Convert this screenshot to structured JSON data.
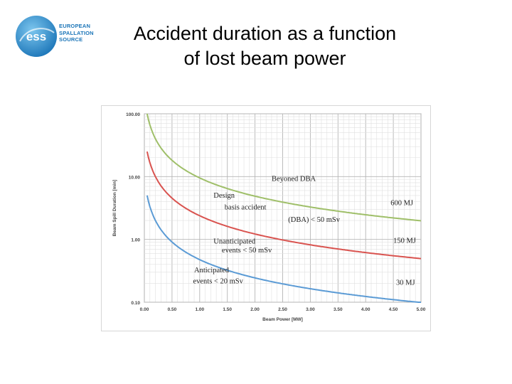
{
  "logo": {
    "mark": "ess",
    "lines": [
      "EUROPEAN",
      "SPALLATION",
      "SOURCE"
    ],
    "colors": {
      "primary": "#1b75b8",
      "light": "#5fb3e3"
    }
  },
  "slide": {
    "title": "Accident duration as a function\nof lost beam power"
  },
  "chart_data": {
    "type": "line",
    "title": "",
    "xlabel": "Beam Power [MW]",
    "ylabel": "Beam Spill Duration [min]",
    "xlim": [
      0,
      5
    ],
    "ylim": [
      0.1,
      100
    ],
    "yscale": "log",
    "grid": true,
    "xticks": [
      "0.00",
      "0.50",
      "1.00",
      "1.50",
      "2.00",
      "2.50",
      "3.00",
      "3.50",
      "4.00",
      "4.50",
      "5.00"
    ],
    "yticks": [
      {
        "value": 100,
        "label": "100.00"
      },
      {
        "value": 10,
        "label": "10.00"
      },
      {
        "value": 1,
        "label": "1.00"
      },
      {
        "value": 0.1,
        "label": "0.10"
      }
    ],
    "x": [
      0.0,
      0.25,
      0.5,
      0.75,
      1.0,
      1.5,
      2.0,
      2.5,
      3.0,
      3.5,
      4.0,
      4.5,
      5.0
    ],
    "series": [
      {
        "name": "600 MJ",
        "color": "#9fbf69",
        "values": [
          100,
          40,
          20,
          13.3,
          10.0,
          6.67,
          5.0,
          4.0,
          3.33,
          2.86,
          2.5,
          2.22,
          2.0
        ]
      },
      {
        "name": "150 MJ",
        "color": "#d9534f",
        "values": [
          25,
          10,
          5.0,
          3.33,
          2.5,
          1.67,
          1.25,
          1.0,
          0.833,
          0.714,
          0.625,
          0.556,
          0.5
        ]
      },
      {
        "name": "30 MJ",
        "color": "#5b9bd5",
        "values": [
          5,
          2.0,
          1.0,
          0.667,
          0.5,
          0.333,
          0.25,
          0.2,
          0.167,
          0.143,
          0.125,
          0.111,
          0.1
        ]
      }
    ],
    "annotations": [
      {
        "text": "Beyoned DBA",
        "x": 2.3,
        "y": 8.5
      },
      {
        "text": "Design",
        "x": 1.25,
        "y": 4.6
      },
      {
        "text": "basis accident",
        "x": 1.45,
        "y": 3.0
      },
      {
        "text": "(DBA) < 50 mSv",
        "x": 2.6,
        "y": 1.9
      },
      {
        "text": "600 MJ",
        "x": 4.45,
        "y": 3.5
      },
      {
        "text": "Unanticipated",
        "x": 1.25,
        "y": 0.86
      },
      {
        "text": "events < 50 mSv",
        "x": 1.4,
        "y": 0.62
      },
      {
        "text": "150 MJ",
        "x": 4.5,
        "y": 0.88
      },
      {
        "text": "Anticipated",
        "x": 0.9,
        "y": 0.3
      },
      {
        "text": "events < 20 mSv",
        "x": 0.88,
        "y": 0.2
      },
      {
        "text": "30 MJ",
        "x": 4.55,
        "y": 0.19
      }
    ]
  }
}
